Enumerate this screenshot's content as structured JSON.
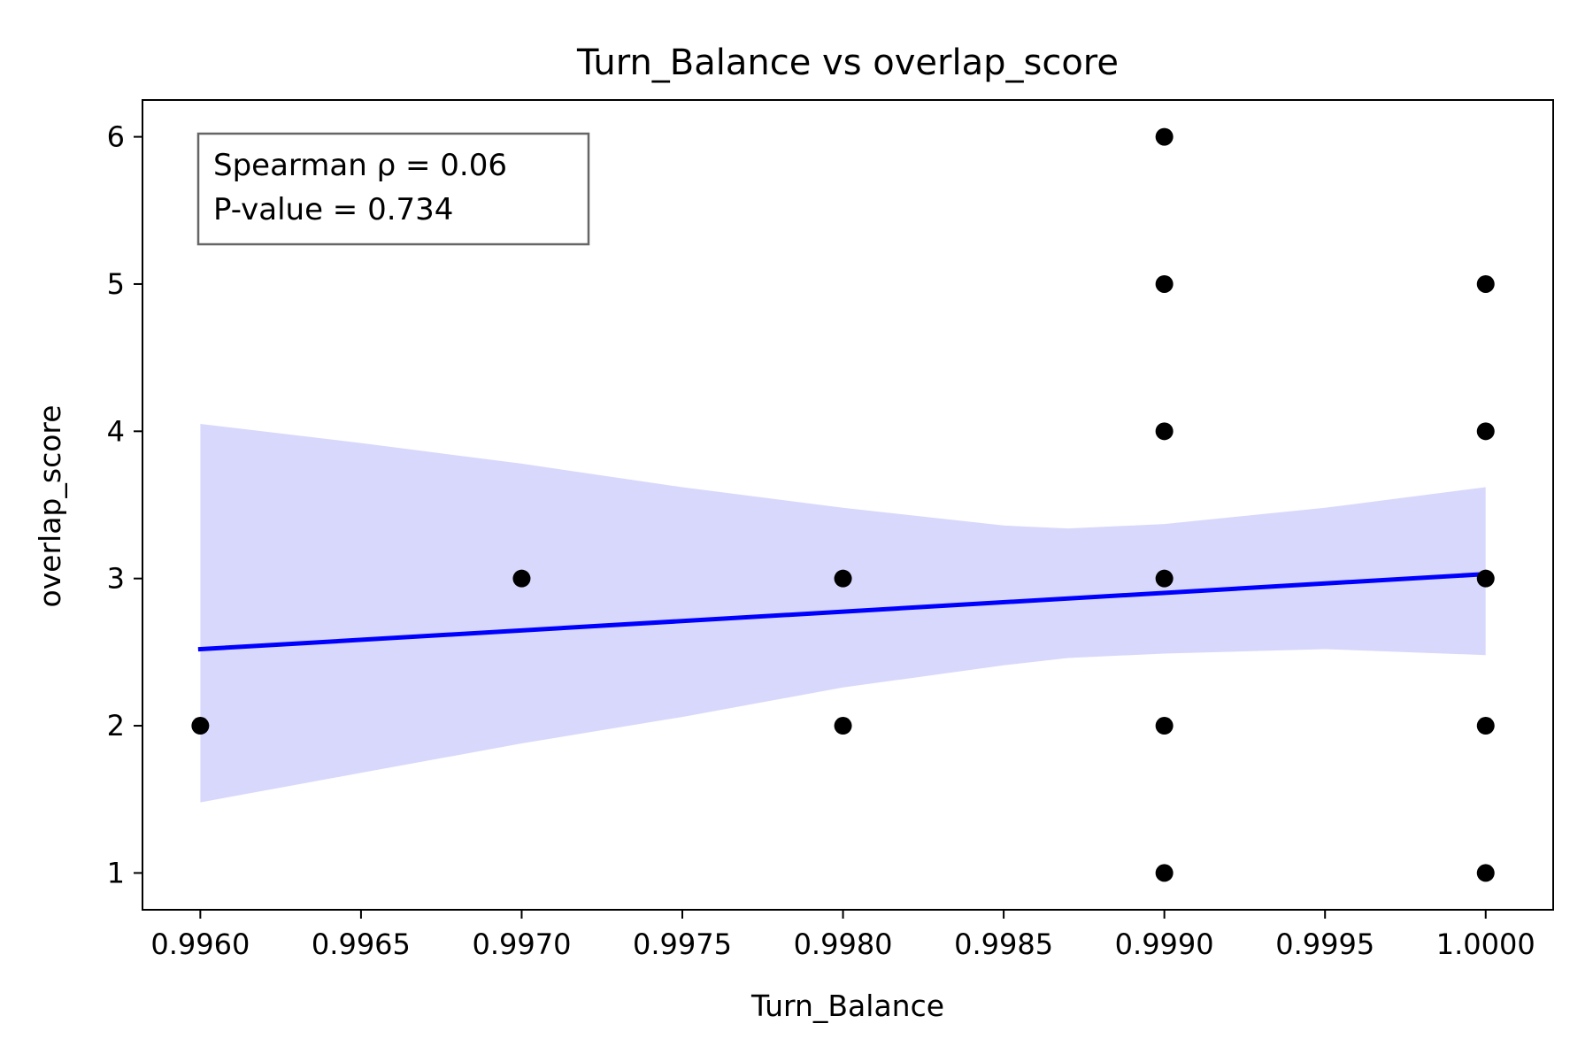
{
  "chart_data": {
    "type": "scatter",
    "title": "Turn_Balance vs overlap_score",
    "xlabel": "Turn_Balance",
    "ylabel": "overlap_score",
    "xlim": [
      0.99582,
      1.00021
    ],
    "ylim": [
      0.75,
      6.25
    ],
    "xticks": [
      0.996,
      0.9965,
      0.997,
      0.9975,
      0.998,
      0.9985,
      0.999,
      0.9995,
      1.0
    ],
    "xtick_labels": [
      "0.9960",
      "0.9965",
      "0.9970",
      "0.9975",
      "0.9980",
      "0.9985",
      "0.9990",
      "0.9995",
      "1.0000"
    ],
    "yticks": [
      1,
      2,
      3,
      4,
      5,
      6
    ],
    "ytick_labels": [
      "1",
      "2",
      "3",
      "4",
      "5",
      "6"
    ],
    "grid": false,
    "points": [
      {
        "x": 0.996,
        "y": 2
      },
      {
        "x": 0.997,
        "y": 3
      },
      {
        "x": 0.998,
        "y": 3
      },
      {
        "x": 0.998,
        "y": 2
      },
      {
        "x": 0.999,
        "y": 6
      },
      {
        "x": 0.999,
        "y": 5
      },
      {
        "x": 0.999,
        "y": 4
      },
      {
        "x": 0.999,
        "y": 3
      },
      {
        "x": 0.999,
        "y": 2
      },
      {
        "x": 0.999,
        "y": 1
      },
      {
        "x": 1.0,
        "y": 5
      },
      {
        "x": 1.0,
        "y": 4
      },
      {
        "x": 1.0,
        "y": 3
      },
      {
        "x": 1.0,
        "y": 2
      },
      {
        "x": 1.0,
        "y": 1
      }
    ],
    "regression_line": {
      "x": [
        0.996,
        1.0
      ],
      "y": [
        2.52,
        3.03
      ],
      "color": "#0000ff"
    },
    "confidence_band": {
      "color": "#d8d8fc",
      "x": [
        0.996,
        0.9965,
        0.997,
        0.9975,
        0.998,
        0.9985,
        0.9987,
        0.999,
        0.9995,
        1.0
      ],
      "upper": [
        4.05,
        3.92,
        3.78,
        3.62,
        3.48,
        3.36,
        3.34,
        3.37,
        3.48,
        3.62
      ],
      "lower": [
        1.48,
        1.68,
        1.88,
        2.06,
        2.26,
        2.41,
        2.46,
        2.49,
        2.52,
        2.48
      ]
    },
    "annotation": {
      "line1": "Spearman ρ = 0.06",
      "line2": "P-value = 0.734",
      "placement": "top-left"
    },
    "colors": {
      "points": "#000000",
      "annotation_border": "#666666"
    }
  }
}
